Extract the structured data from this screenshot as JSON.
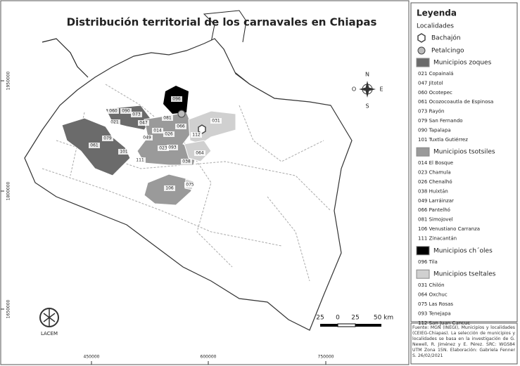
{
  "map": {
    "title": "Distribución territorial de los carnavales en Chiapas",
    "grid_labels": {
      "y": [
        "1950000",
        "1800000",
        "1650000"
      ],
      "x": [
        "450000",
        "600000",
        "750000"
      ]
    },
    "compass": {
      "n": "N",
      "o": "O",
      "e": "E",
      "s": "S"
    },
    "scale": [
      "25",
      "0",
      "25",
      "50 km"
    ],
    "logo": "LACEM",
    "municipality_labels": [
      "096",
      "081",
      "060",
      "090",
      "073",
      "047",
      "021",
      "079",
      "061",
      "101",
      "014",
      "049",
      "066",
      "026",
      "112",
      "031",
      "023",
      "093",
      "111",
      "038",
      "064",
      "106",
      "075"
    ]
  },
  "legend": {
    "title": "Leyenda",
    "localities_title": "Localidades",
    "localities": [
      "Bachajón",
      "Petalcingo"
    ],
    "groups": [
      {
        "name": "Municipios zoques",
        "color": "#6b6b6b",
        "items": [
          "021  Copainalá",
          "047  Jitotol",
          "060  Ocotepec",
          "061  Ocozocoautla de Espinosa",
          "073  Rayón",
          "079  San Fernando",
          "090  Tapalapa",
          "101  Tuxtla Gutiérrez"
        ]
      },
      {
        "name": "Municipios tsotsiles",
        "color": "#9a9a9a",
        "items": [
          "014  El Bosque",
          "023  Chamula",
          "026  Chenalhó",
          "038  Huixtán",
          "049  Larráinzar",
          "066  Pantelhó",
          "081  Simojovel",
          "106  Venustiano Carranza",
          "111  Zinacantán"
        ]
      },
      {
        "name": "Municipios ch´oles",
        "color": "#000000",
        "items": [
          "096  Tila"
        ]
      },
      {
        "name": "Municipios tseltales",
        "color": "#d0d0d0",
        "items": [
          "031  Chilón",
          "064  Oxchuc",
          "075  Las Rosas",
          "093  Tenejapa",
          "112  San Juan Cancuc"
        ]
      }
    ],
    "source": "Fuente: MGN (INEGI), Municipios y localidades (CEIEG-Chiapas). La selección de municipios y localidades se basa en la investigación de G. Newell, R. Jiménez y E. Pérez. SRC: WGS84 UTM Zona 15N. Elaboración: Gabriela Fenner S. 26/02/2021"
  }
}
